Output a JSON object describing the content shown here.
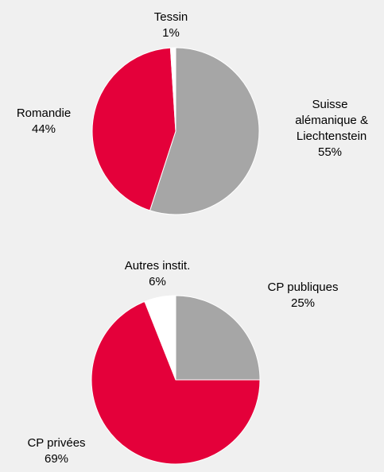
{
  "chart_data": [
    {
      "type": "pie",
      "categories": [
        "Suisse alémanique & Liechtenstein",
        "Romandie",
        "Tessin"
      ],
      "values": [
        55,
        44,
        1
      ],
      "value_labels": [
        "55%",
        "44%",
        "1%"
      ],
      "colors": [
        "#a6a6a6",
        "#e4003a",
        "#ffffff"
      ]
    },
    {
      "type": "pie",
      "categories": [
        "CP publiques",
        "CP privées",
        "Autres instit."
      ],
      "values": [
        25,
        69,
        6
      ],
      "value_labels": [
        "25%",
        "69%",
        "6%"
      ],
      "colors": [
        "#a6a6a6",
        "#e4003a",
        "#ffffff"
      ]
    }
  ]
}
